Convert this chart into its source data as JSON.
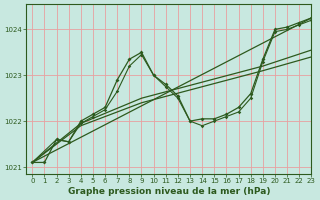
{
  "xlabel": "Graphe pression niveau de la mer (hPa)",
  "bg_color": "#c8e8e0",
  "grid_color": "#e8a0a0",
  "line_color": "#2d5a1e",
  "xlim": [
    -0.5,
    23
  ],
  "ylim": [
    1020.85,
    1024.55
  ],
  "yticks": [
    1021,
    1022,
    1023,
    1024
  ],
  "xticks": [
    0,
    1,
    2,
    3,
    4,
    5,
    6,
    7,
    8,
    9,
    10,
    11,
    12,
    13,
    14,
    15,
    16,
    17,
    18,
    19,
    20,
    21,
    22,
    23
  ],
  "series_main": {
    "x": [
      0,
      1,
      2,
      3,
      4,
      5,
      6,
      7,
      8,
      9,
      10,
      11,
      12,
      13,
      14,
      15,
      16,
      17,
      18,
      19,
      20,
      21,
      22,
      23
    ],
    "y": [
      1021.1,
      1021.1,
      1021.6,
      1021.55,
      1022.0,
      1022.15,
      1022.3,
      1022.9,
      1023.35,
      1023.5,
      1023.0,
      1022.8,
      1022.55,
      1022.0,
      1022.05,
      1022.05,
      1022.15,
      1022.3,
      1022.6,
      1023.35,
      1024.0,
      1024.05,
      1024.15,
      1024.25
    ]
  },
  "series_b": {
    "x": [
      0,
      2,
      3,
      4,
      5,
      6,
      7,
      8,
      9,
      10,
      11,
      12,
      13,
      14,
      15,
      16,
      17,
      18,
      19,
      20,
      21,
      22,
      23
    ],
    "y": [
      1021.1,
      1021.6,
      1021.55,
      1021.95,
      1022.1,
      1022.25,
      1022.65,
      1023.2,
      1023.45,
      1023.0,
      1022.75,
      1022.5,
      1022.0,
      1021.9,
      1022.0,
      1022.1,
      1022.2,
      1022.5,
      1023.3,
      1023.95,
      1024.0,
      1024.1,
      1024.2
    ]
  },
  "line_straight1": {
    "x": [
      0,
      23
    ],
    "y": [
      1021.1,
      1024.25
    ]
  },
  "line_straight2": {
    "x": [
      0,
      4,
      9,
      14,
      19,
      23
    ],
    "y": [
      1021.1,
      1021.9,
      1022.4,
      1022.75,
      1023.1,
      1023.4
    ]
  },
  "line_straight3": {
    "x": [
      0,
      4,
      9,
      14,
      19,
      23
    ],
    "y": [
      1021.1,
      1021.95,
      1022.5,
      1022.85,
      1023.2,
      1023.55
    ]
  }
}
